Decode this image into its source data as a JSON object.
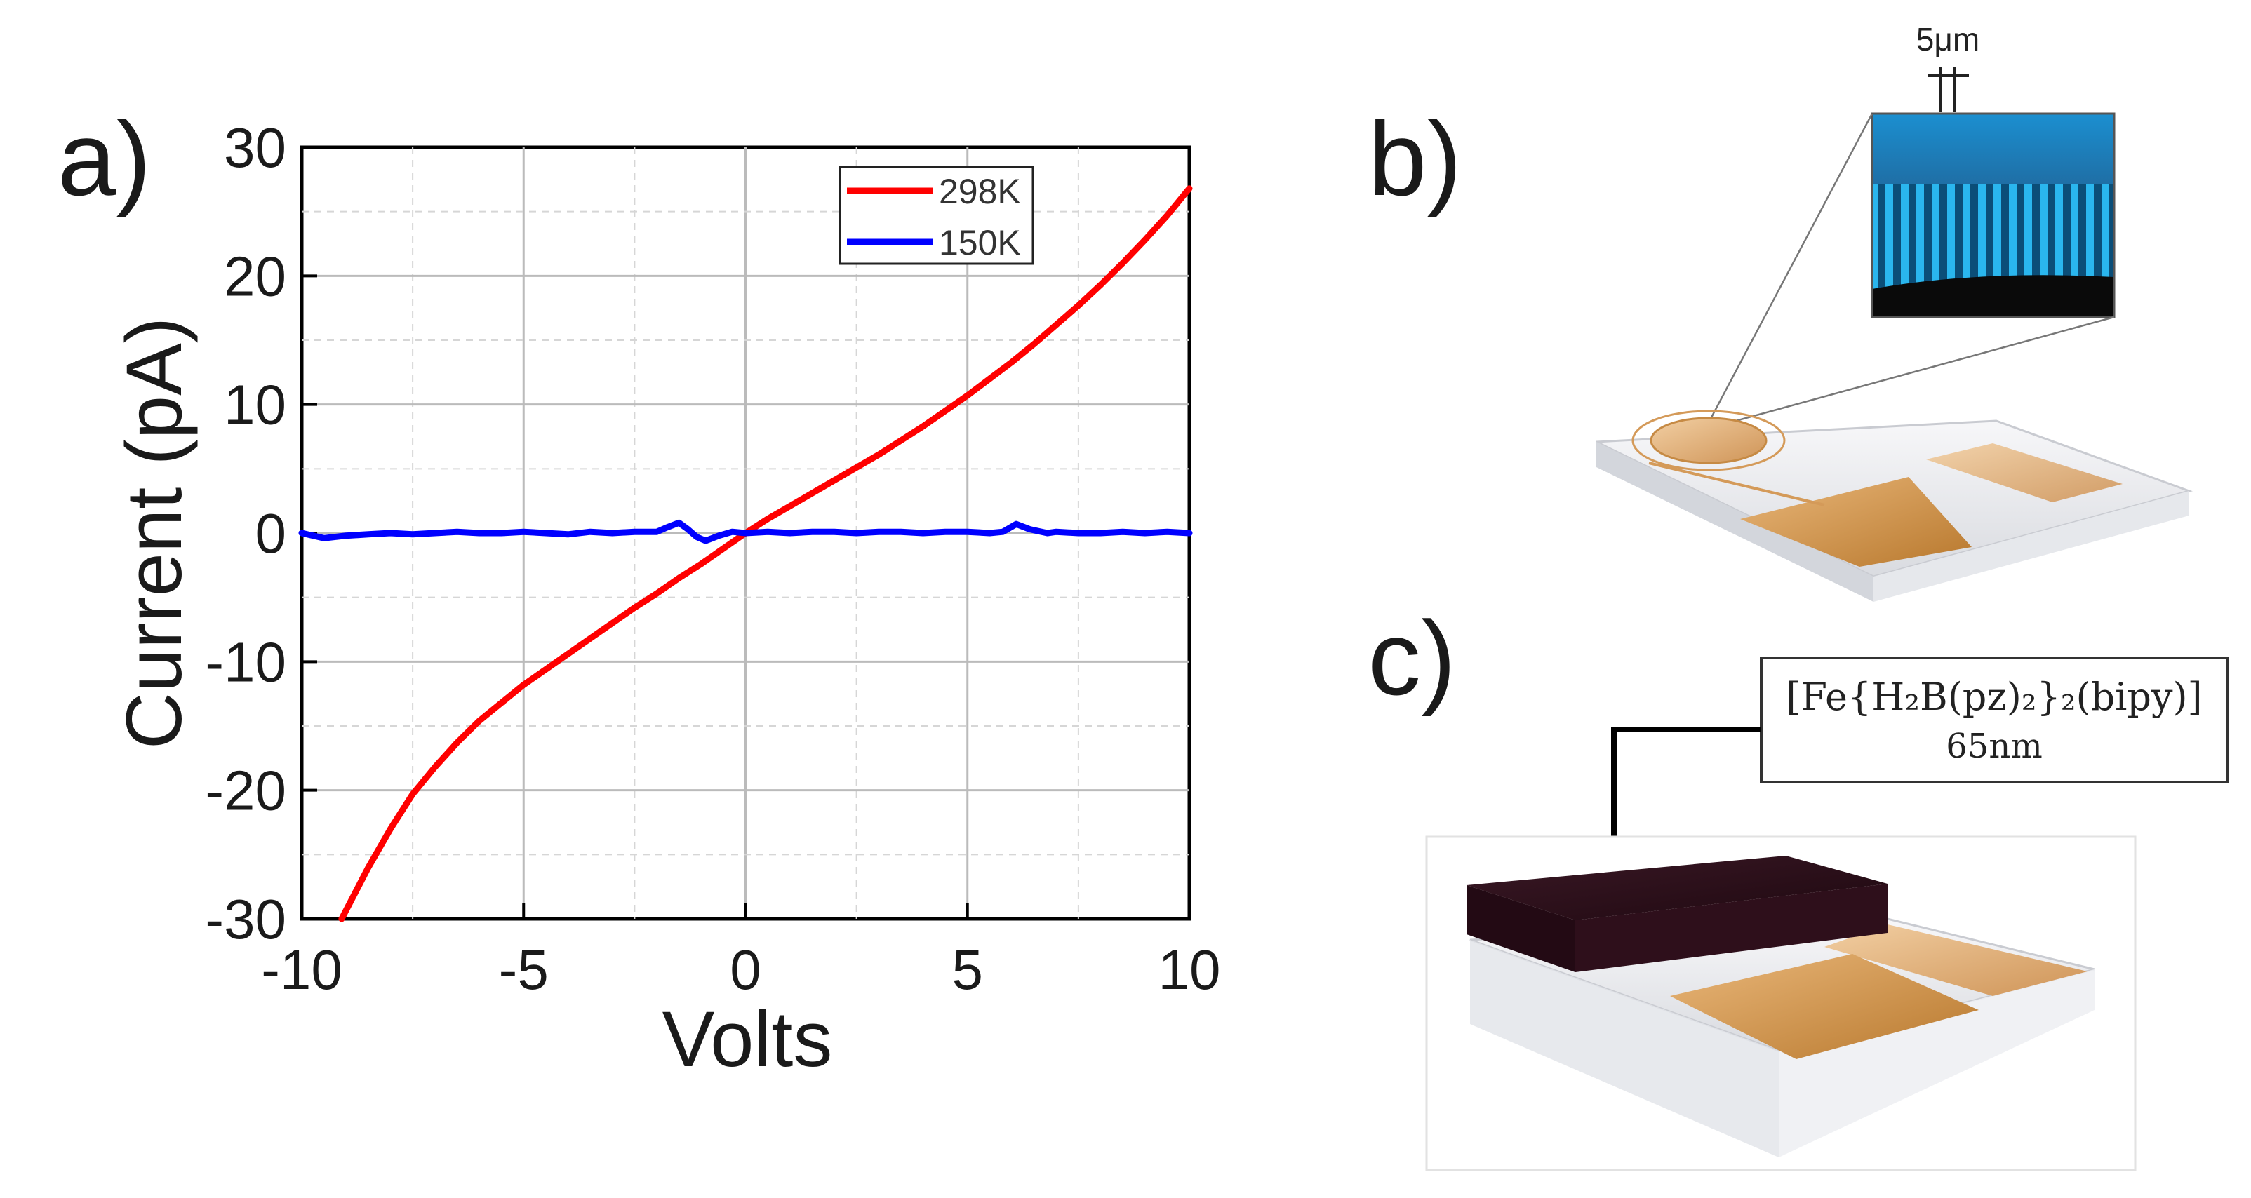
{
  "panels": {
    "a_label": "a)",
    "b_label": "b)",
    "c_label": "c)"
  },
  "chart_data": {
    "type": "line",
    "xlabel": "Volts",
    "ylabel": "Current (pA)",
    "xlim": [
      -10,
      10
    ],
    "ylim": [
      -30,
      30
    ],
    "x_ticks": [
      "-10",
      "-5",
      "0",
      "5",
      "10"
    ],
    "y_ticks": [
      "30",
      "20",
      "10",
      "0",
      "-10",
      "-20",
      "-30"
    ],
    "grid": true,
    "legend_position": "top-right",
    "series": [
      {
        "name": "298K",
        "color": "#ff0000",
        "x": [
          -9.1,
          -8.5,
          -8,
          -7.5,
          -7,
          -6.5,
          -6,
          -5.5,
          -5,
          -4.5,
          -4,
          -3.5,
          -3,
          -2.5,
          -2,
          -1.5,
          -1,
          -0.5,
          0,
          0.5,
          1,
          1.5,
          2,
          2.5,
          3,
          3.5,
          4,
          4.5,
          5,
          5.5,
          6,
          6.5,
          7,
          7.5,
          8,
          8.5,
          9,
          9.5,
          10
        ],
        "y": [
          -30,
          -26,
          -23,
          -20.3,
          -18.2,
          -16.3,
          -14.6,
          -13.2,
          -11.8,
          -10.6,
          -9.4,
          -8.2,
          -7,
          -5.8,
          -4.7,
          -3.5,
          -2.4,
          -1.2,
          0,
          1.1,
          2.1,
          3.1,
          4.1,
          5.1,
          6.1,
          7.2,
          8.3,
          9.5,
          10.7,
          12,
          13.3,
          14.7,
          16.2,
          17.7,
          19.3,
          21,
          22.8,
          24.7,
          26.8
        ]
      },
      {
        "name": "150K",
        "color": "#0000ff",
        "x": [
          -10,
          -9.5,
          -9,
          -8.5,
          -8,
          -7.5,
          -7,
          -6.5,
          -6,
          -5.5,
          -5,
          -4.5,
          -4,
          -3.5,
          -3,
          -2.5,
          -2,
          -1.8,
          -1.5,
          -1.3,
          -1.1,
          -0.9,
          -0.6,
          -0.3,
          0,
          0.5,
          1,
          1.5,
          2,
          2.5,
          3,
          3.5,
          4,
          4.5,
          5,
          5.5,
          5.8,
          6.1,
          6.4,
          6.8,
          7,
          7.5,
          8,
          8.5,
          9,
          9.5,
          10
        ],
        "y": [
          0,
          -0.4,
          -0.2,
          -0.1,
          0,
          -0.1,
          0,
          0.1,
          0,
          0,
          0.1,
          0,
          -0.1,
          0.1,
          0,
          0.1,
          0.1,
          0.4,
          0.8,
          0.3,
          -0.3,
          -0.6,
          -0.2,
          0.1,
          0,
          0.1,
          0,
          0.1,
          0.1,
          0,
          0.1,
          0.1,
          0,
          0.1,
          0.1,
          0,
          0.1,
          0.7,
          0.3,
          0,
          0.1,
          0,
          0,
          0.1,
          0,
          0.1,
          0
        ]
      }
    ]
  },
  "panel_b": {
    "scale_label": "5μm"
  },
  "panel_c": {
    "compound_label": "[Fe{H₂B(pz)₂}₂(bipy)]",
    "thickness_label": "65nm"
  }
}
